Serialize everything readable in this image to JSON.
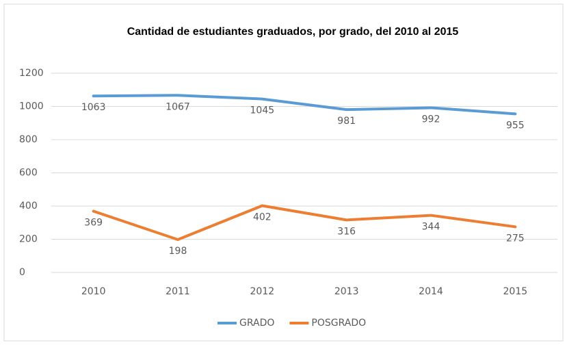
{
  "chart_data": {
    "type": "line",
    "title": "Cantidad de estudiantes graduados, por grado, del 2010 al 2015",
    "categories": [
      "2010",
      "2011",
      "2012",
      "2013",
      "2014",
      "2015"
    ],
    "series": [
      {
        "name": "GRADO",
        "color": "#5b9bd5",
        "values": [
          1063,
          1067,
          1045,
          981,
          992,
          955
        ]
      },
      {
        "name": "POSGRADO",
        "color": "#ed7d31",
        "values": [
          369,
          198,
          402,
          316,
          344,
          275
        ]
      }
    ],
    "ylim": [
      0,
      1200
    ],
    "yticks": [
      0,
      200,
      400,
      600,
      800,
      1000,
      1200
    ],
    "grid": true,
    "legend": "bottom",
    "data_labels": true
  }
}
